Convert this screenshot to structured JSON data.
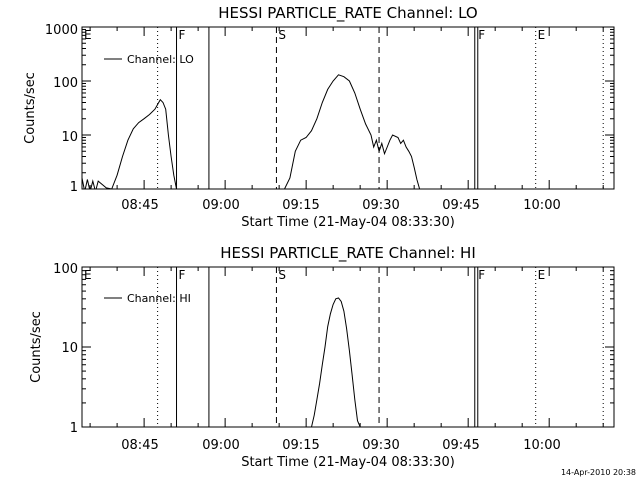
{
  "timestamp": "14-Apr-2010 20:38",
  "chart_data": [
    {
      "type": "line",
      "title": "HESSI PARTICLE_RATE Channel: LO",
      "xlabel": "Start Time (21-May-04 08:33:30)",
      "ylabel": "Counts/sec",
      "y_scale": "log",
      "ylim": [
        1,
        1000
      ],
      "xlim": [
        "08:33:30",
        "10:12:00"
      ],
      "x_ticks": [
        "08:45",
        "09:00",
        "09:15",
        "09:30",
        "09:45",
        "10:00"
      ],
      "y_ticks": [
        "1",
        "10",
        "100",
        "1000"
      ],
      "legend": {
        "label": "Channel: LO",
        "position": "top-left"
      },
      "markers": [
        {
          "label": "E",
          "time": "08:33:30",
          "style": "solid"
        },
        {
          "label": "",
          "time": "08:47:30",
          "style": "dotted"
        },
        {
          "label": "F",
          "time": "08:51:00",
          "style": "solid"
        },
        {
          "label": "",
          "time": "08:57:00",
          "style": "solid"
        },
        {
          "label": "S",
          "time": "09:09:30",
          "style": "dashed"
        },
        {
          "label": "",
          "time": "09:28:30",
          "style": "dashed"
        },
        {
          "label": "F",
          "time": "09:46:30",
          "style": "double"
        },
        {
          "label": "E",
          "time": "09:57:30",
          "style": "dotted"
        },
        {
          "label": "",
          "time": "10:10:00",
          "style": "dotted"
        }
      ],
      "series": [
        {
          "values": [
            [
              "08:33:30",
              1.6
            ],
            [
              "08:34:00",
              0.9
            ],
            [
              "08:34:30",
              1.5
            ],
            [
              "08:35:00",
              0.9
            ],
            [
              "08:35:30",
              1.4
            ],
            [
              "08:36:00",
              0.9
            ],
            [
              "08:36:30",
              1.4
            ],
            [
              "08:38:00",
              1.05
            ],
            [
              "08:39:00",
              1.0
            ],
            [
              "08:40:00",
              1.8
            ],
            [
              "08:41:00",
              4.0
            ],
            [
              "08:42:00",
              8.0
            ],
            [
              "08:43:00",
              13
            ],
            [
              "08:44:00",
              17
            ],
            [
              "08:45:00",
              20
            ],
            [
              "08:46:00",
              24
            ],
            [
              "08:47:00",
              30
            ],
            [
              "08:48:00",
              45
            ],
            [
              "08:48:30",
              40
            ],
            [
              "08:49:00",
              30
            ],
            [
              "08:49:30",
              10
            ],
            [
              "08:50:00",
              4
            ],
            [
              "08:50:30",
              1.8
            ],
            [
              "08:51:00",
              1.0
            ]
          ]
        },
        {
          "values": [
            [
              "09:11:00",
              1.0
            ],
            [
              "09:12:00",
              1.6
            ],
            [
              "09:13:00",
              5
            ],
            [
              "09:14:00",
              8
            ],
            [
              "09:15:00",
              9
            ],
            [
              "09:16:00",
              12
            ],
            [
              "09:17:00",
              20
            ],
            [
              "09:18:00",
              40
            ],
            [
              "09:19:00",
              70
            ],
            [
              "09:20:00",
              100
            ],
            [
              "09:21:00",
              130
            ],
            [
              "09:22:00",
              120
            ],
            [
              "09:23:00",
              100
            ],
            [
              "09:24:00",
              60
            ],
            [
              "09:25:00",
              30
            ],
            [
              "09:26:00",
              16
            ],
            [
              "09:27:00",
              10
            ],
            [
              "09:27:30",
              6
            ],
            [
              "09:28:00",
              8
            ],
            [
              "09:28:30",
              5
            ],
            [
              "09:29:00",
              7
            ],
            [
              "09:29:30",
              4.5
            ],
            [
              "09:30:00",
              6
            ],
            [
              "09:30:30",
              8
            ],
            [
              "09:31:00",
              10
            ],
            [
              "09:32:00",
              9
            ],
            [
              "09:32:30",
              7
            ],
            [
              "09:33:00",
              8
            ],
            [
              "09:33:30",
              6
            ],
            [
              "09:34:00",
              5
            ],
            [
              "09:34:30",
              4
            ],
            [
              "09:35:00",
              2.5
            ],
            [
              "09:35:30",
              1.5
            ],
            [
              "09:36:00",
              1.0
            ]
          ]
        },
        {
          "values": [
            [
              "09:36:30",
              1.0
            ],
            [
              "09:37:00",
              0.85
            ]
          ]
        }
      ]
    },
    {
      "type": "line",
      "title": "HESSI PARTICLE_RATE Channel: HI",
      "xlabel": "Start Time (21-May-04 08:33:30)",
      "ylabel": "Counts/sec",
      "y_scale": "log",
      "ylim": [
        1,
        100
      ],
      "xlim": [
        "08:33:30",
        "10:12:00"
      ],
      "x_ticks": [
        "08:45",
        "09:00",
        "09:15",
        "09:30",
        "09:45",
        "10:00"
      ],
      "y_ticks": [
        "1",
        "10",
        "100"
      ],
      "legend": {
        "label": "Channel: HI",
        "position": "top-left"
      },
      "markers": [
        {
          "label": "E",
          "time": "08:33:30",
          "style": "solid"
        },
        {
          "label": "",
          "time": "08:47:30",
          "style": "dotted"
        },
        {
          "label": "F",
          "time": "08:51:00",
          "style": "solid"
        },
        {
          "label": "",
          "time": "08:57:00",
          "style": "solid"
        },
        {
          "label": "S",
          "time": "09:09:30",
          "style": "dashed"
        },
        {
          "label": "",
          "time": "09:28:30",
          "style": "dashed"
        },
        {
          "label": "F",
          "time": "09:46:30",
          "style": "double"
        },
        {
          "label": "E",
          "time": "09:57:30",
          "style": "dotted"
        },
        {
          "label": "",
          "time": "10:10:00",
          "style": "dotted"
        }
      ],
      "series": [
        {
          "values": [
            [
              "09:16:00",
              1.0
            ],
            [
              "09:16:30",
              1.4
            ],
            [
              "09:17:00",
              2.2
            ],
            [
              "09:17:30",
              3.5
            ],
            [
              "09:18:00",
              6
            ],
            [
              "09:18:30",
              10
            ],
            [
              "09:19:00",
              18
            ],
            [
              "09:19:30",
              26
            ],
            [
              "09:20:00",
              34
            ],
            [
              "09:20:30",
              40
            ],
            [
              "09:21:00",
              41
            ],
            [
              "09:21:30",
              37
            ],
            [
              "09:22:00",
              28
            ],
            [
              "09:22:30",
              17
            ],
            [
              "09:23:00",
              9
            ],
            [
              "09:23:30",
              4.5
            ],
            [
              "09:24:00",
              2.2
            ],
            [
              "09:24:30",
              1.2
            ],
            [
              "09:25:00",
              1.0
            ]
          ]
        }
      ]
    }
  ]
}
